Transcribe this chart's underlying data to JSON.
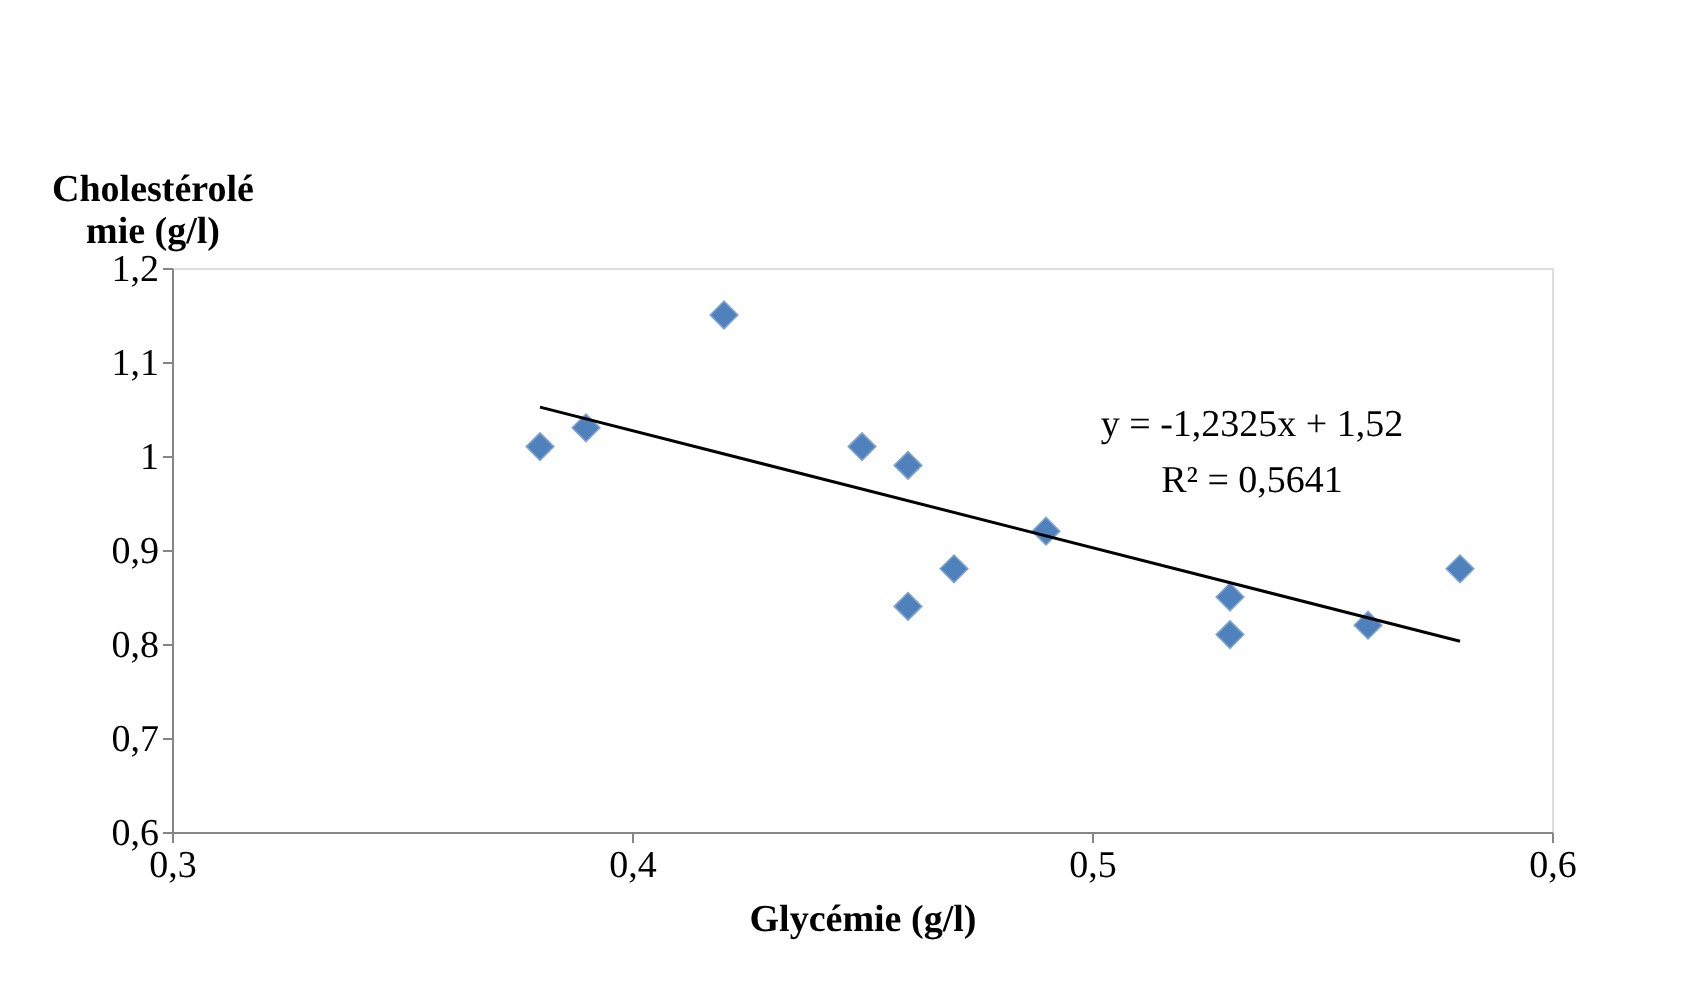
{
  "chart_data": {
    "type": "scatter",
    "xlabel": "Glycémie (g/l)",
    "ylabel": "Cholestérolémie (g/l)",
    "grid": false,
    "xlim": [
      0.3,
      0.6
    ],
    "ylim": [
      0.6,
      1.2
    ],
    "xticks": [
      {
        "value": 0.3,
        "label": "0,3"
      },
      {
        "value": 0.4,
        "label": "0,4"
      },
      {
        "value": 0.5,
        "label": "0,5"
      },
      {
        "value": 0.6,
        "label": "0,6"
      }
    ],
    "yticks": [
      {
        "value": 0.6,
        "label": "0,6"
      },
      {
        "value": 0.7,
        "label": "0,7"
      },
      {
        "value": 0.8,
        "label": "0,8"
      },
      {
        "value": 0.9,
        "label": "0,9"
      },
      {
        "value": 1.0,
        "label": "1"
      },
      {
        "value": 1.1,
        "label": "1,1"
      },
      {
        "value": 1.2,
        "label": "1,2"
      }
    ],
    "annotations": [
      "y = -1,2325x + 1,52",
      "R² = 0,5641"
    ],
    "series": [
      {
        "color": "#4f81bd",
        "marker": "diamond",
        "x": [
          0.38,
          0.39,
          0.42,
          0.45,
          0.46,
          0.46,
          0.47,
          0.49,
          0.53,
          0.53,
          0.56,
          0.58
        ],
        "values": [
          1.01,
          1.03,
          1.15,
          1.01,
          0.99,
          0.84,
          0.88,
          0.92,
          0.85,
          0.81,
          0.82,
          0.88
        ]
      },
      {
        "type": "line",
        "color": "#000000",
        "x": [
          0.38,
          0.58
        ],
        "values": [
          1.052,
          0.803
        ]
      }
    ]
  }
}
